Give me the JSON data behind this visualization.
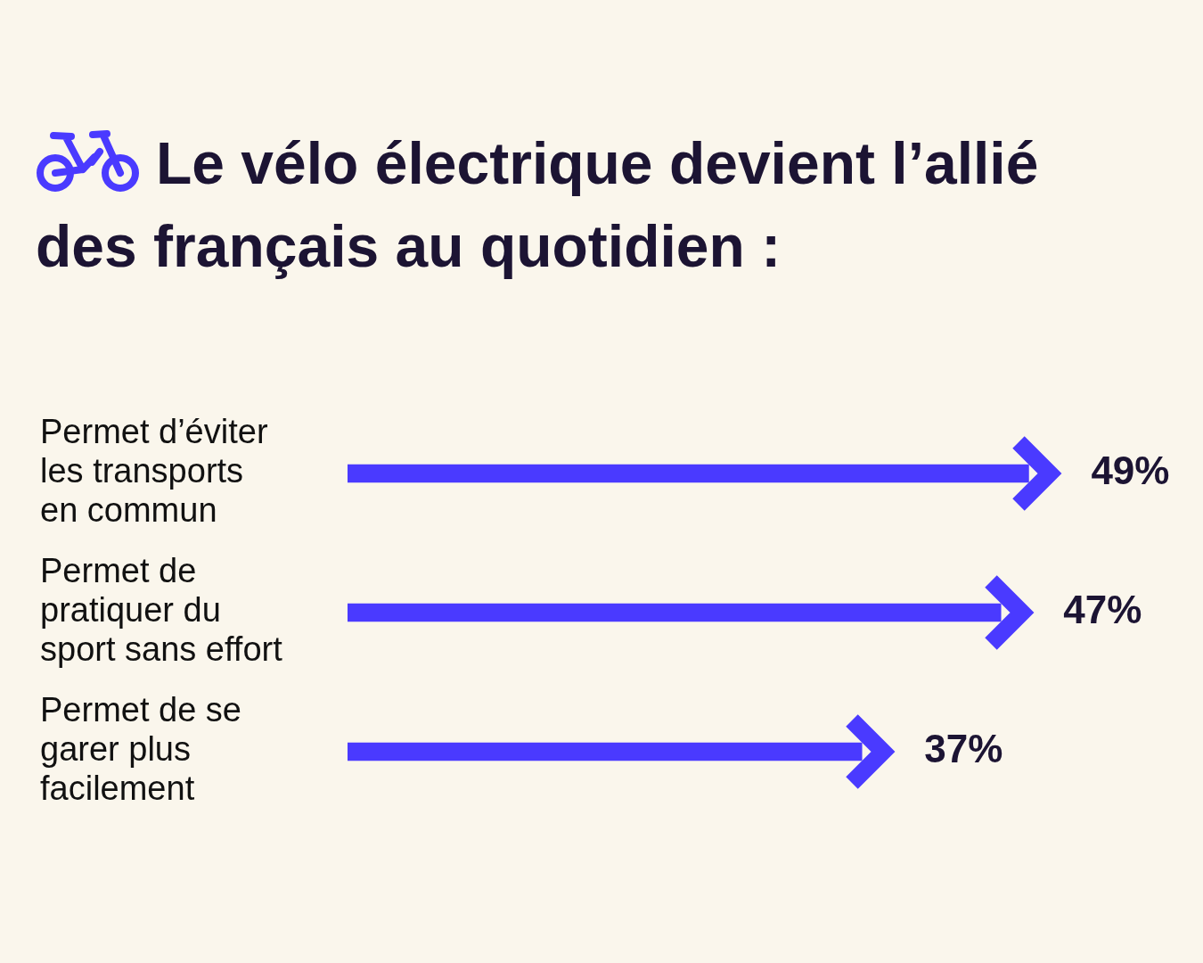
{
  "chart_data": {
    "type": "bar",
    "orientation": "horizontal",
    "title": "Le vélo électrique devient l’allié des français au quotidien :",
    "categories": [
      "Permet d’éviter les transports en commun",
      "Permet de pratiquer du sport sans effort",
      "Permet de se garer plus facilement"
    ],
    "values": [
      49,
      47,
      37
    ],
    "value_labels": [
      "49%",
      "47%",
      "37%"
    ],
    "color": "#4a3aff",
    "grid": false,
    "legend": false
  }
}
